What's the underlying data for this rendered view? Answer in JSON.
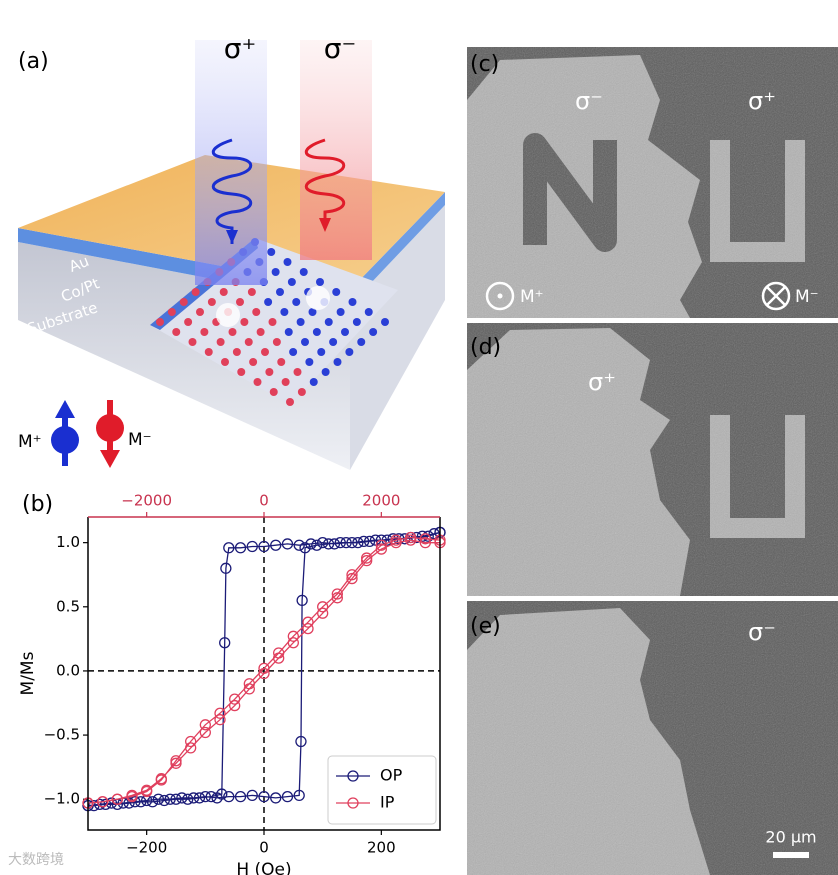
{
  "panel_labels": [
    "(a)",
    "(b)",
    "(c)",
    "(d)",
    "(e)"
  ],
  "panel_a": {
    "beams": [
      "σ⁺",
      "σ⁻"
    ],
    "layers": [
      "Au",
      "Co/Pt",
      "Substrate"
    ],
    "legend": [
      "M⁺",
      "M⁻"
    ]
  },
  "panel_c": {
    "labels": [
      "σ⁻",
      "σ⁺"
    ],
    "states": [
      "M⁺",
      "M⁻"
    ]
  },
  "panel_d": {
    "label": "σ⁺"
  },
  "panel_e": {
    "label": "σ⁻",
    "scale_bar": "20 µm"
  },
  "watermark": "大数跨境",
  "chart_data": {
    "type": "line",
    "xlabel": "H (Oe)",
    "ylabel": "M/Ms",
    "xlim": [
      -300,
      300
    ],
    "xticks": [
      {
        "value": -200,
        "label": "−200"
      },
      0,
      200
    ],
    "x2lim": [
      -3000,
      3000
    ],
    "x2ticks": [
      {
        "value": -2000,
        "label": "−2000"
      },
      0,
      2000
    ],
    "x2color": "#c8334f",
    "ylim": [
      -1.24,
      1.2
    ],
    "yticks": [
      {
        "value": -1.0,
        "label": "−1.0"
      },
      {
        "value": -0.5,
        "label": "−0.5"
      },
      {
        "value": 0.0,
        "label": "0.0"
      },
      0.5,
      {
        "value": 1.0,
        "label": "1.0"
      }
    ],
    "zero_lines": true,
    "legend": "lower right",
    "series": [
      {
        "name": "OP",
        "color": "#1c1c78",
        "axis": "x",
        "x": [
          300,
          280,
          260,
          240,
          220,
          200,
          180,
          160,
          140,
          120,
          100,
          80,
          60,
          40,
          20,
          0,
          -20,
          -40,
          -60,
          -65,
          -67,
          -72,
          -90,
          -110,
          -130,
          -150,
          -170,
          -190,
          -210,
          -230,
          -250,
          -270,
          -290,
          -300,
          -300,
          -280,
          -260,
          -240,
          -220,
          -200,
          -180,
          -160,
          -140,
          -120,
          -100,
          -80,
          -60,
          -40,
          -20,
          0,
          20,
          40,
          60,
          63,
          65,
          70,
          90,
          110,
          130,
          150,
          170,
          190,
          210,
          230,
          250,
          270,
          290,
          300
        ],
        "values": [
          1.08,
          1.05,
          1.04,
          1.03,
          1.03,
          1.02,
          1.01,
          1.0,
          1.0,
          0.99,
          1.0,
          0.99,
          0.98,
          0.99,
          0.98,
          0.97,
          0.97,
          0.96,
          0.96,
          0.8,
          0.22,
          -0.96,
          -0.98,
          -0.99,
          -1.0,
          -1.0,
          -1.01,
          -1.02,
          -1.02,
          -1.03,
          -1.04,
          -1.04,
          -1.05,
          -1.05,
          -1.05,
          -1.04,
          -1.03,
          -1.03,
          -1.02,
          -1.01,
          -1.0,
          -1.0,
          -0.99,
          -0.99,
          -0.98,
          -0.99,
          -0.98,
          -0.98,
          -0.97,
          -0.98,
          -0.99,
          -0.98,
          -0.97,
          -0.55,
          0.55,
          0.96,
          0.98,
          0.99,
          1.0,
          1.0,
          1.01,
          1.02,
          1.02,
          1.03,
          1.04,
          1.05,
          1.07,
          1.08
        ]
      },
      {
        "name": "IP",
        "color": "#e0405e",
        "axis": "x2",
        "x": [
          3000,
          2750,
          2500,
          2250,
          2000,
          1750,
          1500,
          1250,
          1000,
          750,
          500,
          250,
          0,
          -250,
          -500,
          -750,
          -1000,
          -1250,
          -1500,
          -1750,
          -2000,
          -2250,
          -2500,
          -2750,
          -3000,
          -3000,
          -2750,
          -2500,
          -2250,
          -2000,
          -1750,
          -1500,
          -1250,
          -1000,
          -750,
          -500,
          -250,
          0,
          250,
          500,
          750,
          1000,
          1250,
          1500,
          1750,
          2000,
          2250,
          2500,
          2750,
          3000
        ],
        "values": [
          1.02,
          1.03,
          1.04,
          1.02,
          0.98,
          0.88,
          0.75,
          0.6,
          0.5,
          0.38,
          0.27,
          0.14,
          0.02,
          -0.1,
          -0.22,
          -0.33,
          -0.42,
          -0.55,
          -0.7,
          -0.85,
          -0.94,
          -0.98,
          -1.0,
          -1.02,
          -1.03,
          -1.03,
          -1.02,
          -1.0,
          -0.97,
          -0.93,
          -0.84,
          -0.72,
          -0.6,
          -0.48,
          -0.38,
          -0.27,
          -0.14,
          -0.02,
          0.1,
          0.22,
          0.33,
          0.45,
          0.57,
          0.72,
          0.86,
          0.95,
          1.0,
          1.02,
          1.0,
          1.0
        ]
      }
    ]
  }
}
